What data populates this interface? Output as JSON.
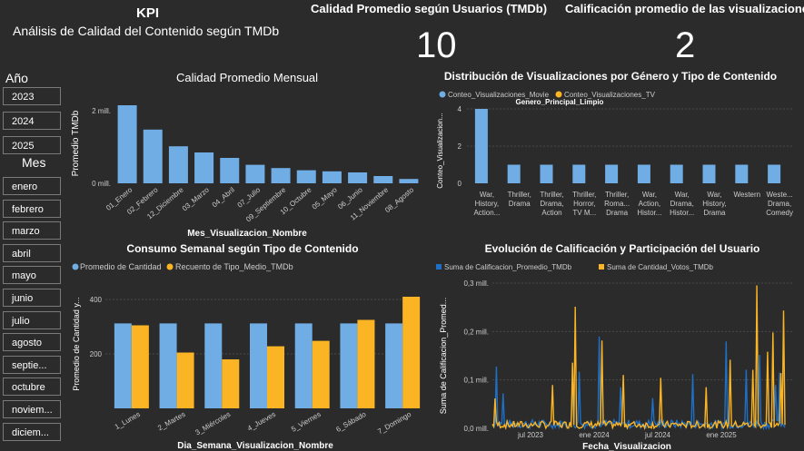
{
  "header": {
    "kpi_label": "KPI",
    "subtitle": "Análisis de Calidad del Contenido según TMDb"
  },
  "cards": {
    "quality": {
      "title": "Calidad Promedio según Usuarios (TMDb)",
      "value": "10"
    },
    "rating": {
      "title": "Calificación promedio de las visualizaciones",
      "value": "2"
    }
  },
  "slicers": {
    "year": {
      "title": "Año",
      "items": [
        "2023",
        "2024",
        "2025"
      ]
    },
    "month": {
      "title": "Mes",
      "items": [
        "enero",
        "febrero",
        "marzo",
        "abril",
        "mayo",
        "junio",
        "julio",
        "agosto",
        "septie...",
        "octubre",
        "noviem...",
        "diciem..."
      ]
    }
  },
  "colors": {
    "blue": "#6fade4",
    "yellow": "#fbb524",
    "line_blue": "#1f6fc5",
    "bg": "#2b2b2b"
  },
  "chart_data": [
    {
      "id": "monthly",
      "type": "bar",
      "title": "Calidad Promedio Mensual",
      "xlabel": "Mes_Visualizacion_Nombre",
      "ylabel": "Promedio TMDb",
      "yticks": [
        "0 mill.",
        "2 mill."
      ],
      "ylim": [
        0,
        2200000
      ],
      "categories": [
        "01_Enero",
        "02_Febrero",
        "12_Diciembre",
        "03_Marzo",
        "04_Abril",
        "07_Julio",
        "09_Septiembre",
        "10_Octubre",
        "05_Mayo",
        "06_Junio",
        "11_Noviembre",
        "08_Agosto"
      ],
      "values": [
        2150000,
        1480000,
        1020000,
        850000,
        700000,
        510000,
        420000,
        360000,
        330000,
        300000,
        200000,
        120000
      ]
    },
    {
      "id": "genre",
      "type": "bar",
      "title": "Distribución de Visualizaciones por Género y Tipo de Contenido",
      "xlabel": "Genero_Principal_Limpio",
      "ylabel": "Conteo_Visualizacion...",
      "yticks": [
        "0",
        "2",
        "4"
      ],
      "ylim": [
        0,
        4
      ],
      "series": [
        {
          "name": "Conteo_Visualizaciones_Movie",
          "values": [
            4,
            1,
            1,
            1,
            1,
            1,
            1,
            1,
            1,
            1
          ]
        },
        {
          "name": "Conteo_Visualizaciones_TV",
          "values": [
            0,
            0,
            0,
            0,
            0,
            0,
            0,
            0,
            0,
            0
          ]
        }
      ],
      "categories": [
        [
          "War,",
          "History,",
          "Action..."
        ],
        [
          "Thriller,",
          "Drama"
        ],
        [
          "Thriller,",
          "Drama,",
          "Action"
        ],
        [
          "Thriller,",
          "Horror,",
          "TV M..."
        ],
        [
          "Thriller,",
          "Roma...",
          "Drama"
        ],
        [
          "War,",
          "Action,",
          "Histor..."
        ],
        [
          "War,",
          "Drama,",
          "Histor..."
        ],
        [
          "War,",
          "History,",
          "Drama"
        ],
        [
          "Western"
        ],
        [
          "Weste...",
          "Drama,",
          "Comedy"
        ]
      ]
    },
    {
      "id": "weekly",
      "type": "bar",
      "title": "Consumo Semanal según Tipo de Contenido",
      "xlabel": "Dia_Semana_Visualizacion_Nombre",
      "ylabel": "Promedio de Cantidad y...",
      "yticks": [
        "200",
        "400"
      ],
      "ylim": [
        0,
        440
      ],
      "categories": [
        "1_Lunes",
        "2_Martes",
        "3_Miércoles",
        "4_Jueves",
        "5_Viernes",
        "6_Sábado",
        "7_Domingo"
      ],
      "series": [
        {
          "name": "Promedio de Cantidad",
          "values": [
            312,
            312,
            312,
            312,
            312,
            312,
            312
          ]
        },
        {
          "name": "Recuento de Tipo_Medio_TMDb",
          "values": [
            305,
            205,
            180,
            228,
            248,
            325,
            410
          ]
        }
      ]
    },
    {
      "id": "evolution",
      "type": "line",
      "title": "Evolución de Calificación y Participación del Usuario",
      "xlabel": "Fecha_Visualizacion",
      "ylabel": "Suma de Calificacion_Promed...",
      "yticks": [
        "0,0 mill.",
        "0,1 mill.",
        "0,2 mill.",
        "0,3 mill."
      ],
      "xticks": [
        "jul 2023",
        "ene 2024",
        "jul 2024",
        "ene 2025"
      ],
      "ylim": [
        0,
        300000
      ],
      "series": [
        {
          "name": "Suma de Calificacion_Promedio_TMDb"
        },
        {
          "name": "Suma de Cantidad_Votos_TMDb"
        }
      ]
    }
  ]
}
